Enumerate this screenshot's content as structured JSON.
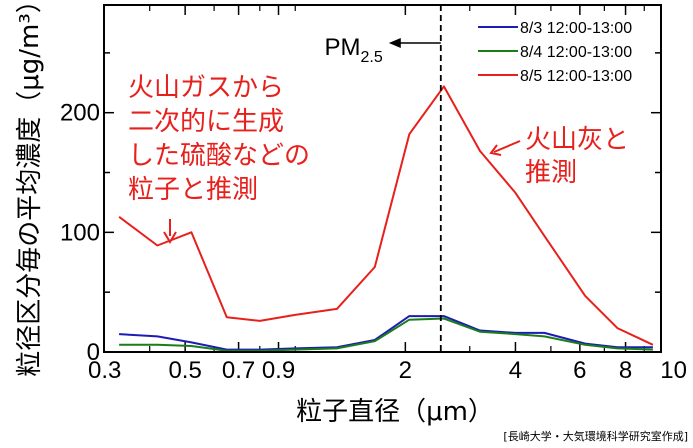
{
  "chart_data": {
    "type": "line",
    "xlabel": "粒子直径（μm）",
    "ylabel": "粒径区分毎の平均濃度（μg/m³）",
    "xscale": "log",
    "xlim": [
      0.3,
      10
    ],
    "ylim": [
      0,
      290
    ],
    "x_ticks": [
      {
        "value": 0.3,
        "label": "0.3"
      },
      {
        "value": 0.5,
        "label": "0.5"
      },
      {
        "value": 0.7,
        "label": "0.7"
      },
      {
        "value": 0.9,
        "label": "0.9"
      },
      {
        "value": 2,
        "label": "2"
      },
      {
        "value": 4,
        "label": "4"
      },
      {
        "value": 6,
        "label": "6"
      },
      {
        "value": 8,
        "label": "8"
      },
      {
        "value": 10,
        "label": "10"
      }
    ],
    "x_minor_ticks": [
      0.4,
      0.6,
      0.8,
      1,
      3,
      5,
      7,
      9
    ],
    "y_ticks": [
      0,
      100,
      200
    ],
    "reference_line": {
      "x": 2.5,
      "label": "PM",
      "label_sub": "2.5"
    },
    "legend_position": "top-right",
    "series": [
      {
        "name": "8/3 12:00-13:00",
        "color": "#1c1cb4",
        "x": [
          0.33,
          0.42,
          0.52,
          0.65,
          0.8,
          1.0,
          1.3,
          1.65,
          2.05,
          2.55,
          3.2,
          4.0,
          4.8,
          6.2,
          7.6,
          9.5
        ],
        "y": [
          15,
          13,
          8,
          2,
          2,
          3,
          4,
          10,
          30,
          30,
          18,
          16,
          16,
          7,
          4,
          4
        ]
      },
      {
        "name": "8/4 12:00-13:00",
        "color": "#1a7d1a",
        "x": [
          0.33,
          0.42,
          0.52,
          0.65,
          0.8,
          1.0,
          1.3,
          1.65,
          2.05,
          2.55,
          3.2,
          4.0,
          4.8,
          6.2,
          7.6,
          9.5
        ],
        "y": [
          6,
          6,
          5,
          1,
          1,
          2,
          3,
          9,
          27,
          28,
          17,
          15,
          13,
          6,
          3,
          2
        ]
      },
      {
        "name": "8/5 12:00-13:00",
        "color": "#e8201c",
        "x": [
          0.33,
          0.42,
          0.52,
          0.65,
          0.8,
          1.0,
          1.3,
          1.65,
          2.05,
          2.55,
          3.2,
          4.0,
          4.8,
          6.2,
          7.6,
          9.5
        ],
        "y": [
          113,
          89,
          100,
          29,
          26,
          31,
          36,
          71,
          182,
          222,
          168,
          133,
          97,
          47,
          20,
          6
        ]
      }
    ],
    "annotations": [
      {
        "lines": [
          "火山ガスから",
          "二次的に生成",
          "した硫酸などの",
          "粒子と推測"
        ]
      },
      {
        "lines": [
          "火山灰と",
          "推測"
        ]
      }
    ],
    "credit": "[長崎大学・大気環境科学研究室作成]"
  }
}
